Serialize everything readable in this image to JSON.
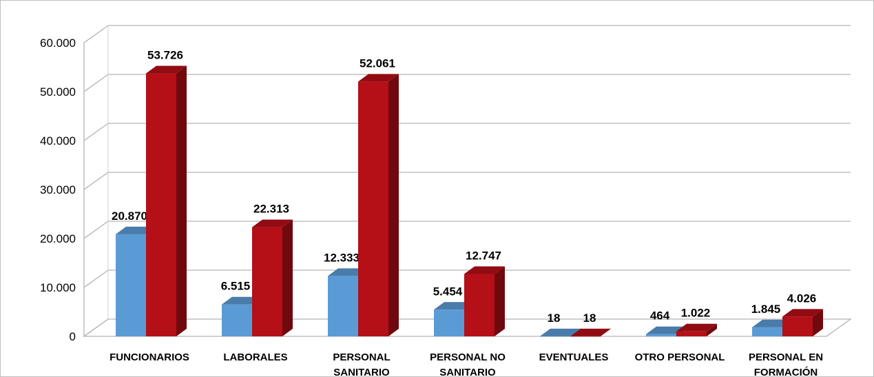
{
  "chart_data": {
    "type": "bar",
    "title": "",
    "xlabel": "",
    "ylabel": "",
    "ylim": [
      0,
      60000
    ],
    "yticks": [
      "0",
      "10.000",
      "20.000",
      "30.000",
      "40.000",
      "50.000",
      "60.000"
    ],
    "grid": true,
    "legend": "none",
    "style": "3d-clustered-column",
    "categories": [
      [
        "FUNCIONARIOS"
      ],
      [
        "LABORALES"
      ],
      [
        "PERSONAL",
        "SANITARIO"
      ],
      [
        "PERSONAL NO",
        "SANITARIO"
      ],
      [
        "EVENTUALES"
      ],
      [
        "OTRO PERSONAL"
      ],
      [
        "PERSONAL EN",
        "FORMACIÓN"
      ]
    ],
    "series": [
      {
        "values": [
          20870,
          6515,
          12333,
          5454,
          18,
          464,
          1845
        ],
        "labels": [
          "20.870",
          "6.515",
          "12.333",
          "5.454",
          "18",
          "464",
          "1.845"
        ],
        "color": "#5b9bd5"
      },
      {
        "values": [
          53726,
          22313,
          52061,
          12747,
          18,
          1022,
          4026
        ],
        "labels": [
          "53.726",
          "22.313",
          "52.061",
          "12.747",
          "18",
          "1.022",
          "4.026"
        ],
        "color": "#b50f17"
      }
    ]
  }
}
